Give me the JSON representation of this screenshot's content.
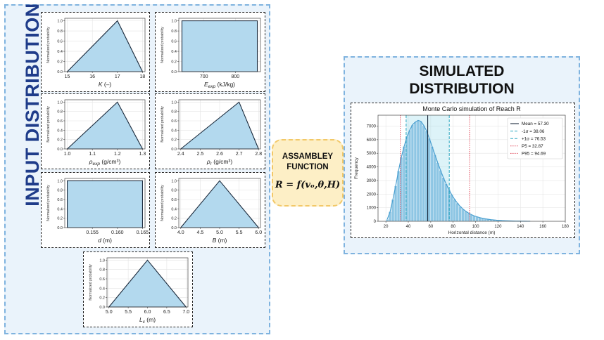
{
  "input_panel": {
    "title": "INPUT DISTRIBUTION"
  },
  "output_panel": {
    "title_line1": "SIMULATED",
    "title_line2": "DISTRIBUTION"
  },
  "assembly": {
    "line1": "ASSAMBLEY",
    "line2": "FUNCTION",
    "formula": "R = f(vₒ,θ,H)"
  },
  "colors": {
    "fill": "#b3d9ee",
    "edge": "#1b2a3c",
    "panel": "#eaf3fb",
    "panel_border": "#7fb3df",
    "assembly_fill": "#fdefc6"
  },
  "input_charts": [
    {
      "id": "K",
      "type": "triangular",
      "label": "K (–)",
      "ylabel": "Normalized probability",
      "xlim": [
        14.9,
        18.1
      ],
      "xticks": [
        15,
        16,
        17,
        18
      ],
      "tick_labels": [
        "15",
        "16",
        "17",
        "18"
      ],
      "points": [
        [
          15,
          0
        ],
        [
          17,
          1
        ],
        [
          18,
          0
        ]
      ]
    },
    {
      "id": "Eexp",
      "type": "uniform",
      "label": "Eexp (kJ/kg)",
      "ylabel": "Normalized probability",
      "xlim": [
        620,
        880
      ],
      "xticks": [
        700,
        800
      ],
      "tick_labels": [
        "700",
        "800"
      ],
      "points": [
        [
          630,
          0
        ],
        [
          630,
          1
        ],
        [
          870,
          1
        ],
        [
          870,
          0
        ]
      ]
    },
    {
      "id": "rhoexp",
      "type": "triangular",
      "label": "ρexp (g/cm³)",
      "ylabel": "Normalized probability",
      "xlim": [
        0.99,
        1.31
      ],
      "xticks": [
        1.0,
        1.1,
        1.2,
        1.3
      ],
      "tick_labels": [
        "1.0",
        "1.1",
        "1.2",
        "1.3"
      ],
      "points": [
        [
          1.0,
          0
        ],
        [
          1.2,
          1
        ],
        [
          1.3,
          0
        ]
      ]
    },
    {
      "id": "rhor",
      "type": "triangular",
      "label": "ρr (g/cm³)",
      "ylabel": "Normalized probability",
      "xlim": [
        2.39,
        2.81
      ],
      "xticks": [
        2.4,
        2.5,
        2.6,
        2.7,
        2.8
      ],
      "tick_labels": [
        "2.4",
        "2.5",
        "2.6",
        "2.7",
        "2.8"
      ],
      "points": [
        [
          2.4,
          0
        ],
        [
          2.7,
          1
        ],
        [
          2.8,
          0
        ]
      ]
    },
    {
      "id": "d",
      "type": "uniform",
      "label": "d (m)",
      "ylabel": "Normalized probability",
      "xlim": [
        0.1495,
        0.1655
      ],
      "xticks": [
        0.155,
        0.16,
        0.165
      ],
      "tick_labels": [
        "0.155",
        "0.160",
        "0.165"
      ],
      "points": [
        [
          0.15,
          0
        ],
        [
          0.15,
          1
        ],
        [
          0.165,
          1
        ],
        [
          0.165,
          0
        ]
      ]
    },
    {
      "id": "B",
      "type": "triangular",
      "label": "B (m)",
      "ylabel": "Normalized probability",
      "xlim": [
        3.95,
        6.05
      ],
      "xticks": [
        4.0,
        4.5,
        5.0,
        5.5,
        6.0
      ],
      "tick_labels": [
        "4.0",
        "4.5",
        "5.0",
        "5.5",
        "6.0"
      ],
      "points": [
        [
          4,
          0
        ],
        [
          5,
          1
        ],
        [
          6,
          0
        ]
      ]
    },
    {
      "id": "Lc",
      "type": "triangular",
      "label": "Lc (m)",
      "ylabel": "Normalized probability",
      "xlim": [
        4.95,
        7.05
      ],
      "xticks": [
        5.0,
        5.5,
        6.0,
        6.5,
        7.0
      ],
      "tick_labels": [
        "5.0",
        "5.5",
        "6.0",
        "6.5",
        "7.0"
      ],
      "points": [
        [
          5,
          0
        ],
        [
          6,
          1
        ],
        [
          7,
          0
        ]
      ]
    }
  ],
  "yticks": [
    0.0,
    0.2,
    0.4,
    0.6,
    0.8,
    1.0
  ],
  "ytick_labels": [
    "0.0",
    "0.2",
    "0.4",
    "0.6",
    "0.8",
    "1.0"
  ],
  "chart_data": {
    "type": "bar",
    "title": "Monte Carlo simulation of Reach R",
    "xlabel": "Horizontal distance (m)",
    "ylabel": "Frequency",
    "xlim": [
      13,
      180
    ],
    "ylim": [
      0,
      7800
    ],
    "xticks": [
      20,
      40,
      60,
      80,
      100,
      120,
      140,
      160,
      180
    ],
    "tick_labels": [
      "20",
      "40",
      "60",
      "80",
      "100",
      "120",
      "140",
      "160",
      "180"
    ],
    "yticks": [
      0,
      1000,
      2000,
      3000,
      4000,
      5000,
      6000,
      7000
    ],
    "ytick_labels": [
      "0",
      "1000",
      "2000",
      "3000",
      "4000",
      "5000",
      "6000",
      "7000"
    ],
    "bin_start": 20,
    "bin_width": 2.5,
    "values": [
      150,
      700,
      1600,
      2600,
      3700,
      4700,
      5500,
      6200,
      6700,
      7100,
      7300,
      7420,
      7350,
      7050,
      6650,
      6100,
      5500,
      4900,
      4300,
      3750,
      3220,
      2750,
      2330,
      1950,
      1620,
      1340,
      1100,
      900,
      740,
      600,
      490,
      400,
      330,
      270,
      220,
      180,
      150,
      120,
      100,
      80,
      65,
      50,
      40,
      32,
      25,
      20,
      15,
      12,
      9,
      6,
      4,
      3
    ],
    "sigma_band": [
      38.06,
      76.53
    ],
    "vlines": [
      {
        "x": 57.3,
        "style": "mean",
        "label": "Mean = 57.30"
      },
      {
        "x": 38.06,
        "style": "sigma",
        "label": "-1σ = 38.06"
      },
      {
        "x": 76.53,
        "style": "sigma",
        "label": "+1σ = 76.53"
      },
      {
        "x": 32.87,
        "style": "pct",
        "label": "P5 = 32.87"
      },
      {
        "x": 94.69,
        "style": "pct",
        "label": "P95 = 94.69"
      }
    ]
  }
}
